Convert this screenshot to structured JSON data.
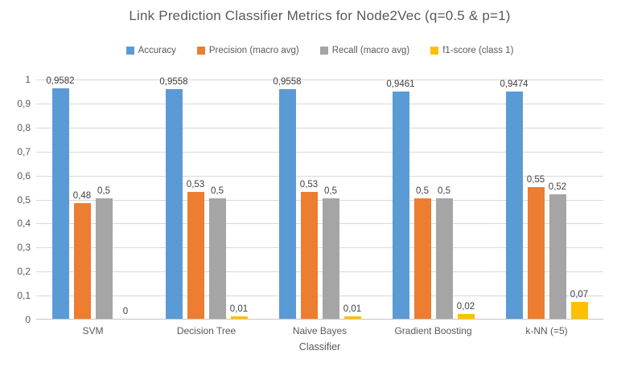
{
  "chart_data": {
    "type": "bar",
    "title": "Link Prediction Classifier Metrics for Node2Vec (q=0.5 & p=1)",
    "xlabel": "Classifier",
    "ylabel": "",
    "ylim": [
      0,
      1
    ],
    "ytick_step": 0.1,
    "ytick_labels": [
      "0",
      "0,1",
      "0,2",
      "0,3",
      "0,4",
      "0,5",
      "0,6",
      "0,7",
      "0,8",
      "0,9",
      "1"
    ],
    "grid": true,
    "legend_position": "top",
    "decimal_separator": ",",
    "categories": [
      "SVM",
      "Decision Tree",
      "Naive Bayes",
      "Gradient Boosting",
      "k-NN (=5)"
    ],
    "series": [
      {
        "name": "Accuracy",
        "color": "#5B9BD5",
        "values": [
          0.9582,
          0.9558,
          0.9558,
          0.9461,
          0.9474
        ],
        "labels": [
          "0,9582",
          "0,9558",
          "0,9558",
          "0,9461",
          "0,9474"
        ]
      },
      {
        "name": "Precision (macro avg)",
        "color": "#ED7D31",
        "values": [
          0.48,
          0.53,
          0.53,
          0.5,
          0.55
        ],
        "labels": [
          "0,48",
          "0,53",
          "0,53",
          "0,5",
          "0,55"
        ]
      },
      {
        "name": "Recall (macro avg)",
        "color": "#A5A5A5",
        "values": [
          0.5,
          0.5,
          0.5,
          0.5,
          0.52
        ],
        "labels": [
          "0,5",
          "0,5",
          "0,5",
          "0,5",
          "0,52"
        ]
      },
      {
        "name": "f1-score (class 1)",
        "color": "#FFC000",
        "values": [
          0,
          0.01,
          0.01,
          0.02,
          0.07
        ],
        "labels": [
          "0",
          "0,01",
          "0,01",
          "0,02",
          "0,07"
        ]
      }
    ]
  }
}
